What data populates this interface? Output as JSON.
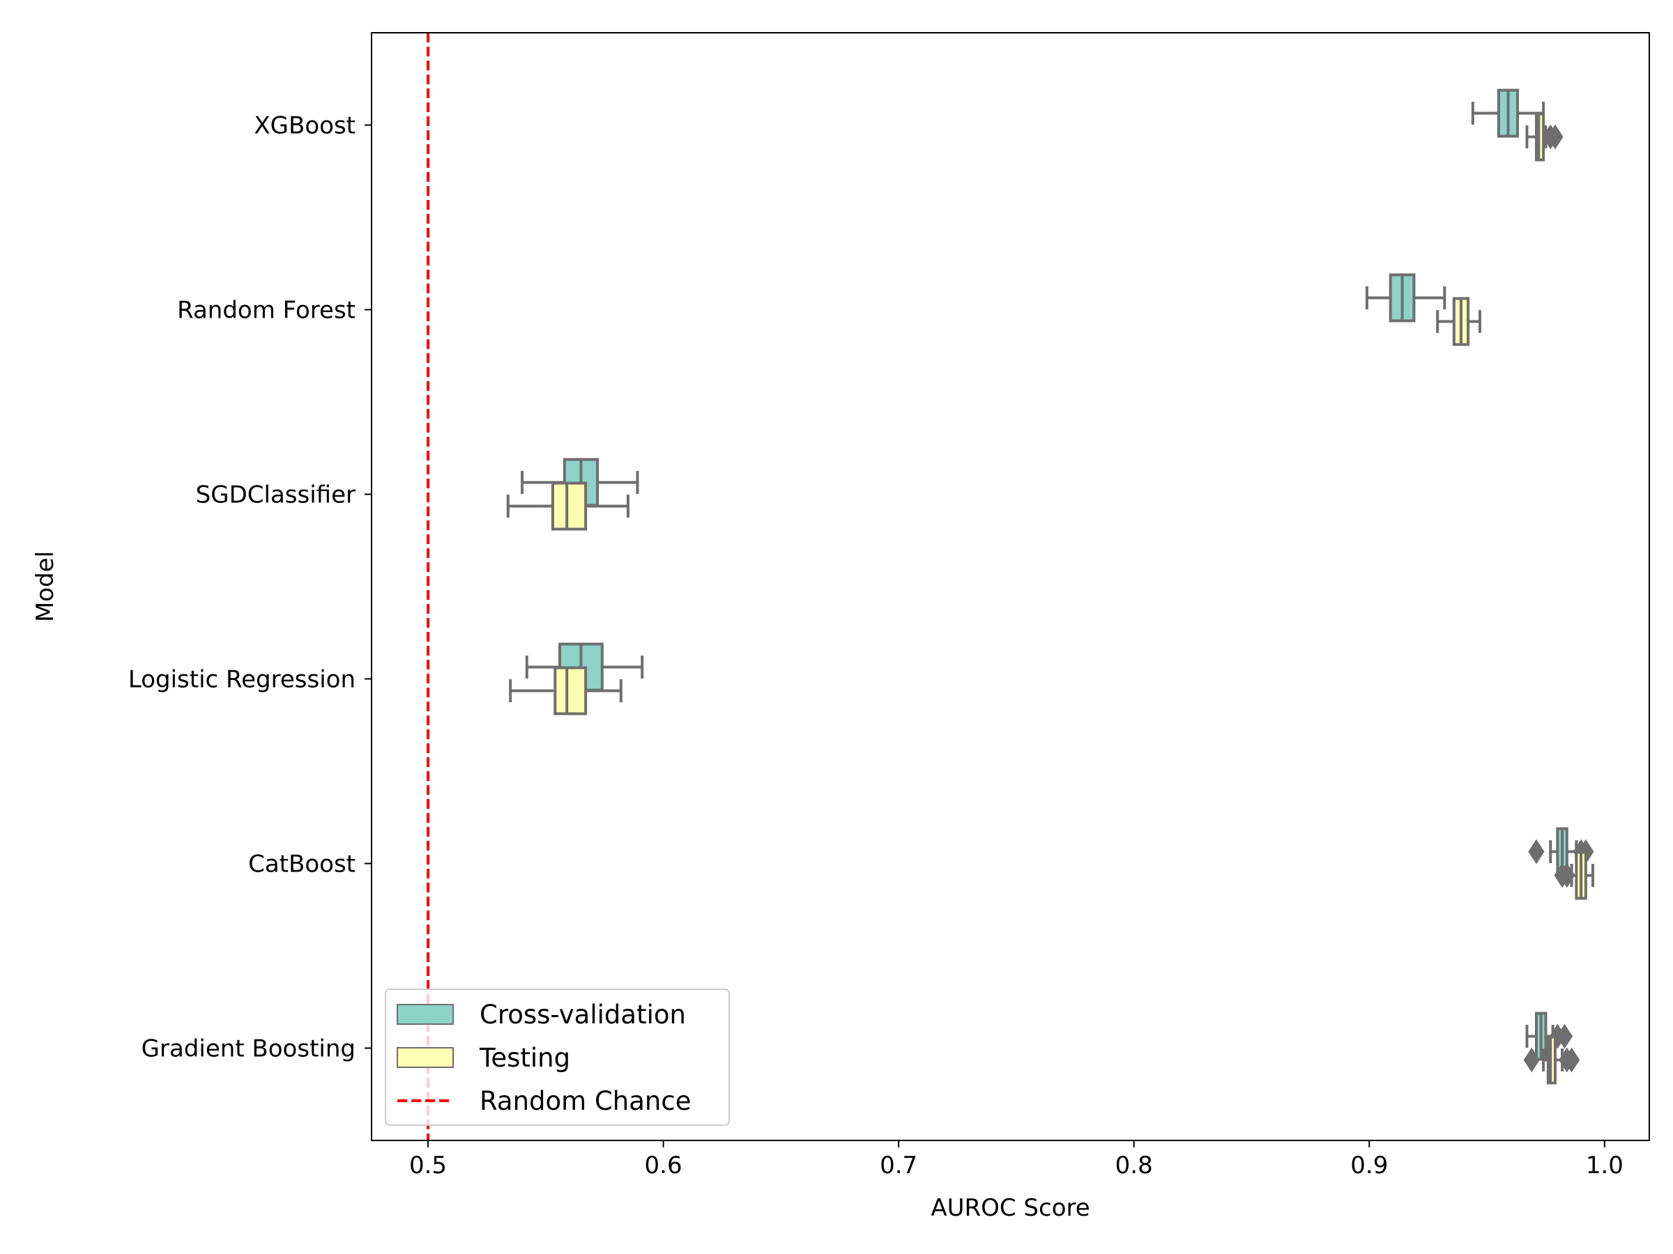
{
  "chart_data": {
    "type": "box",
    "orientation": "horizontal",
    "title": "",
    "xlabel": "AUROC Score",
    "ylabel": "Model",
    "xlim": [
      0.476,
      1.019
    ],
    "xticks": [
      0.5,
      0.6,
      0.7,
      0.8,
      0.9,
      1.0
    ],
    "xtick_labels": [
      "0.5",
      "0.6",
      "0.7",
      "0.8",
      "0.9",
      "1.0"
    ],
    "categories": [
      "XGBoost",
      "Random Forest",
      "SGDClassifier",
      "Logistic Regression",
      "CatBoost",
      "Gradient Boosting"
    ],
    "grid": false,
    "legend_position": "lower-left",
    "series": [
      {
        "name": "Cross-validation",
        "color": "#8dd3c7",
        "boxes": [
          {
            "whislo": 0.944,
            "q1": 0.955,
            "med": 0.959,
            "q3": 0.963,
            "whishi": 0.974,
            "fliers": []
          },
          {
            "whislo": 0.899,
            "q1": 0.909,
            "med": 0.914,
            "q3": 0.919,
            "whishi": 0.932,
            "fliers": []
          },
          {
            "whislo": 0.54,
            "q1": 0.558,
            "med": 0.565,
            "q3": 0.572,
            "whishi": 0.589,
            "fliers": []
          },
          {
            "whislo": 0.542,
            "q1": 0.556,
            "med": 0.565,
            "q3": 0.574,
            "whishi": 0.591,
            "fliers": []
          },
          {
            "whislo": 0.977,
            "q1": 0.98,
            "med": 0.982,
            "q3": 0.984,
            "whishi": 0.988,
            "fliers": [
              0.971,
              0.99,
              0.992
            ]
          },
          {
            "whislo": 0.967,
            "q1": 0.971,
            "med": 0.973,
            "q3": 0.975,
            "whishi": 0.978,
            "fliers": [
              0.98,
              0.983
            ]
          }
        ]
      },
      {
        "name": "Testing",
        "color": "#ffffb3",
        "boxes": [
          {
            "whislo": 0.967,
            "q1": 0.971,
            "med": 0.972,
            "q3": 0.974,
            "whishi": 0.975,
            "fliers": [
              0.977,
              0.979
            ]
          },
          {
            "whislo": 0.929,
            "q1": 0.936,
            "med": 0.939,
            "q3": 0.942,
            "whishi": 0.947,
            "fliers": []
          },
          {
            "whislo": 0.534,
            "q1": 0.553,
            "med": 0.559,
            "q3": 0.567,
            "whishi": 0.585,
            "fliers": []
          },
          {
            "whislo": 0.535,
            "q1": 0.554,
            "med": 0.559,
            "q3": 0.567,
            "whishi": 0.582,
            "fliers": []
          },
          {
            "whislo": 0.986,
            "q1": 0.988,
            "med": 0.99,
            "q3": 0.992,
            "whishi": 0.995,
            "fliers": [
              0.982,
              0.984
            ]
          },
          {
            "whislo": 0.974,
            "q1": 0.976,
            "med": 0.977,
            "q3": 0.979,
            "whishi": 0.982,
            "fliers": [
              0.969,
              0.984,
              0.986
            ]
          }
        ]
      }
    ],
    "reference_line": {
      "name": "Random Chance",
      "x": 0.5,
      "color": "#ff0000",
      "style": "dashed"
    },
    "legend": [
      {
        "label": "Cross-validation",
        "kind": "patch",
        "color": "#8dd3c7"
      },
      {
        "label": "Testing",
        "kind": "patch",
        "color": "#ffffb3"
      },
      {
        "label": "Random Chance",
        "kind": "line",
        "color": "#ff0000"
      }
    ],
    "box_edge_color": "#6e6e6e"
  }
}
